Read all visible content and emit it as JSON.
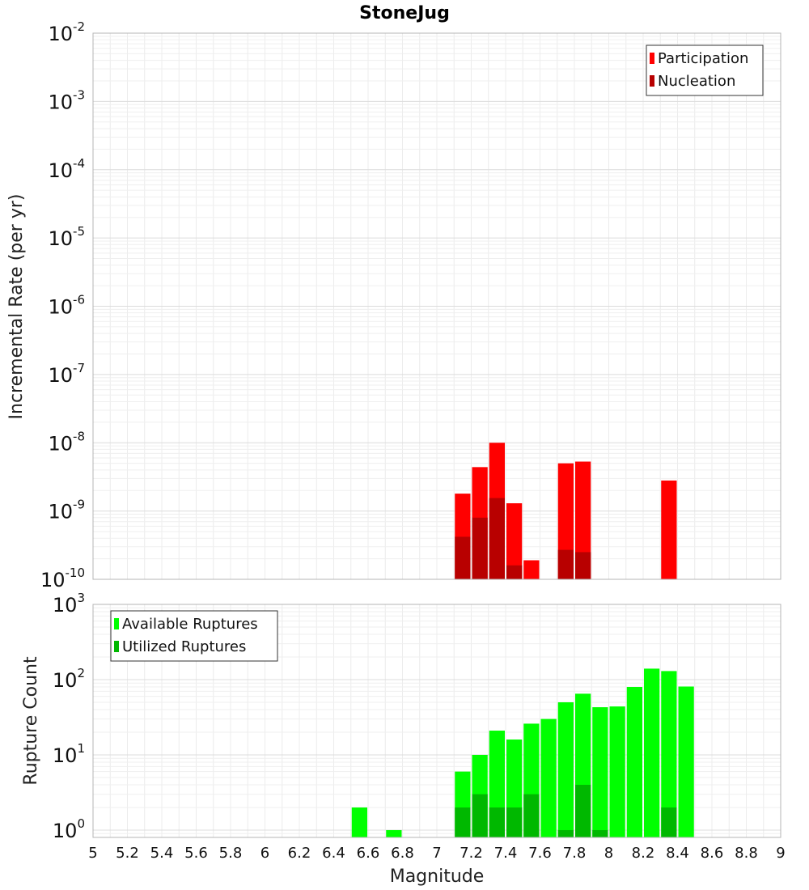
{
  "chart_data": [
    {
      "type": "bar",
      "title": "StoneJug",
      "xlabel": "",
      "ylabel": "Incremental Rate (per yr)",
      "xlim": [
        5,
        9
      ],
      "ylim": [
        1e-10,
        0.01
      ],
      "yscale": "log",
      "grid": true,
      "legend_position": "top-right",
      "y_tick_labels": [
        {
          "base": "10",
          "exp": "-2",
          "value": 0.01
        },
        {
          "base": "10",
          "exp": "-3",
          "value": 0.001
        },
        {
          "base": "10",
          "exp": "-4",
          "value": 0.0001
        },
        {
          "base": "10",
          "exp": "-5",
          "value": 1e-05
        },
        {
          "base": "10",
          "exp": "-6",
          "value": 1e-06
        },
        {
          "base": "10",
          "exp": "-7",
          "value": 1e-07
        },
        {
          "base": "10",
          "exp": "-8",
          "value": 1e-08
        },
        {
          "base": "10",
          "exp": "-9",
          "value": 1e-09
        },
        {
          "base": "10",
          "exp": "-10",
          "value": 1e-10
        }
      ],
      "bin_width": 0.1,
      "series": [
        {
          "name": "Participation",
          "color": "#ff0000",
          "x": [
            7.15,
            7.25,
            7.35,
            7.45,
            7.55,
            7.75,
            7.85,
            8.35
          ],
          "values": [
            1.8e-09,
            4.4e-09,
            1e-08,
            1.3e-09,
            1.9e-10,
            5e-09,
            5.3e-09,
            2.8e-09
          ]
        },
        {
          "name": "Nucleation",
          "color": "#b80000",
          "x": [
            7.15,
            7.25,
            7.35,
            7.45,
            7.75,
            7.85
          ],
          "values": [
            4.2e-10,
            8e-10,
            1.55e-09,
            1.6e-10,
            2.7e-10,
            2.5e-10
          ]
        }
      ]
    },
    {
      "type": "bar",
      "title": "",
      "xlabel": "Magnitude",
      "ylabel": "Rupture Count",
      "xlim": [
        5,
        9
      ],
      "ylim": [
        0.8,
        1000
      ],
      "yscale": "log",
      "grid": true,
      "legend_position": "top-left",
      "y_tick_labels": [
        {
          "base": "10",
          "exp": "3",
          "value": 1000
        },
        {
          "base": "10",
          "exp": "2",
          "value": 100
        },
        {
          "base": "10",
          "exp": "1",
          "value": 10
        },
        {
          "base": "10",
          "exp": "0",
          "value": 1
        }
      ],
      "x_ticks": [
        "5",
        "5.2",
        "5.4",
        "5.6",
        "5.8",
        "6",
        "6.2",
        "6.4",
        "6.6",
        "6.8",
        "7",
        "7.2",
        "7.4",
        "7.6",
        "7.8",
        "8",
        "8.2",
        "8.4",
        "8.6",
        "8.8",
        "9"
      ],
      "bin_width": 0.1,
      "series": [
        {
          "name": "Available Ruptures",
          "color": "#00ff00",
          "x": [
            6.55,
            6.75,
            7.15,
            7.25,
            7.35,
            7.45,
            7.55,
            7.65,
            7.75,
            7.85,
            7.95,
            8.05,
            8.15,
            8.25,
            8.35,
            8.45
          ],
          "values": [
            2,
            1,
            6,
            10,
            21,
            16,
            26,
            30,
            50,
            65,
            43,
            44,
            80,
            140,
            130,
            81
          ]
        },
        {
          "name": "Utilized Ruptures",
          "color": "#00b800",
          "x": [
            7.15,
            7.25,
            7.35,
            7.45,
            7.55,
            7.75,
            7.85,
            7.95,
            8.35
          ],
          "values": [
            2,
            3,
            2,
            2,
            3,
            1,
            4,
            1,
            2
          ]
        }
      ]
    }
  ]
}
